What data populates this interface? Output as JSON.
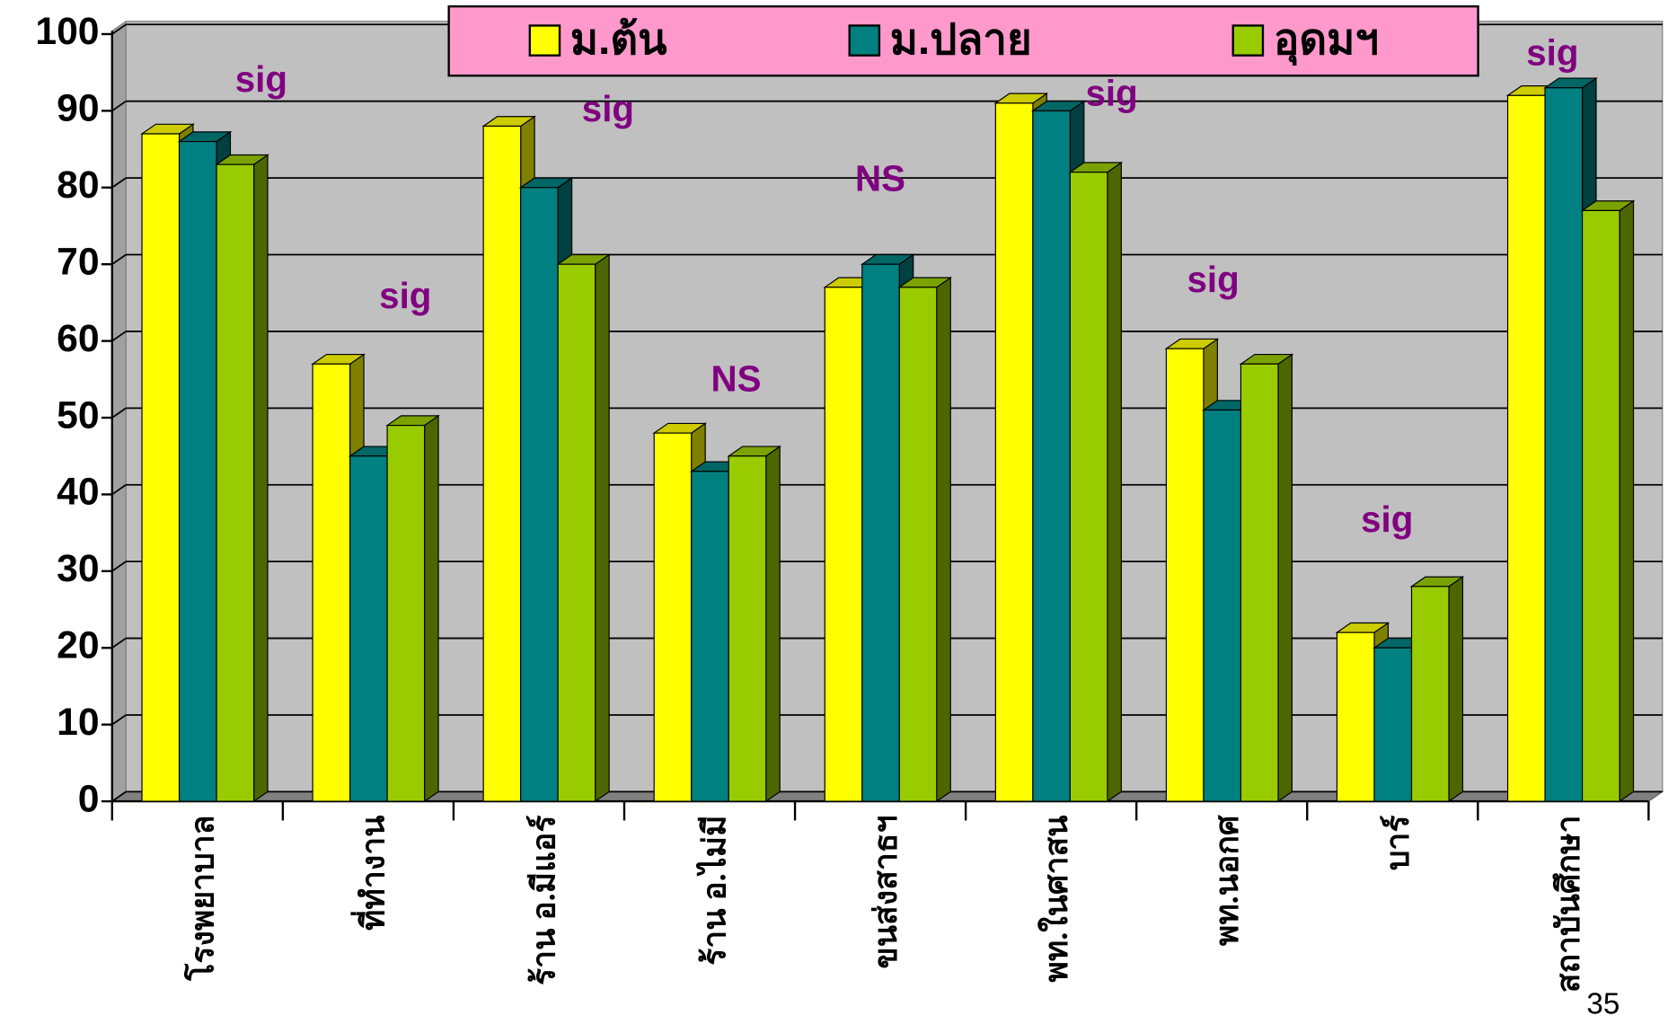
{
  "chart_data": {
    "type": "bar3d",
    "categories": [
      "โรงพยาบาล",
      "ที่ทำงาน",
      "ร้าน อ.มีแอร์",
      "ร้าน อ.ไม่มี",
      "ขนส่งสาธฯ",
      "พท.ในศาสน",
      "พท.นอกศ",
      "บาร์",
      "สถาบันศึกษา"
    ],
    "series": [
      {
        "name": "ม.ต้น",
        "color": "#ffff00",
        "values": [
          87,
          57,
          88,
          48,
          67,
          91,
          59,
          22,
          92
        ]
      },
      {
        "name": "ม.ปลาย",
        "color": "#008080",
        "values": [
          86,
          45,
          80,
          43,
          70,
          90,
          51,
          20,
          93
        ]
      },
      {
        "name": "อุดมฯ",
        "color": "#99cc00",
        "values": [
          83,
          49,
          70,
          45,
          67,
          82,
          57,
          28,
          77
        ]
      }
    ],
    "annotations": [
      "sig",
      "sig",
      "sig",
      "NS",
      "NS",
      "sig",
      "sig",
      "sig",
      "sig"
    ],
    "ylim": [
      0,
      100
    ],
    "yticks": [
      0,
      10,
      20,
      30,
      40,
      50,
      60,
      70,
      80,
      90,
      100
    ],
    "grid": true,
    "page_number": "35"
  }
}
